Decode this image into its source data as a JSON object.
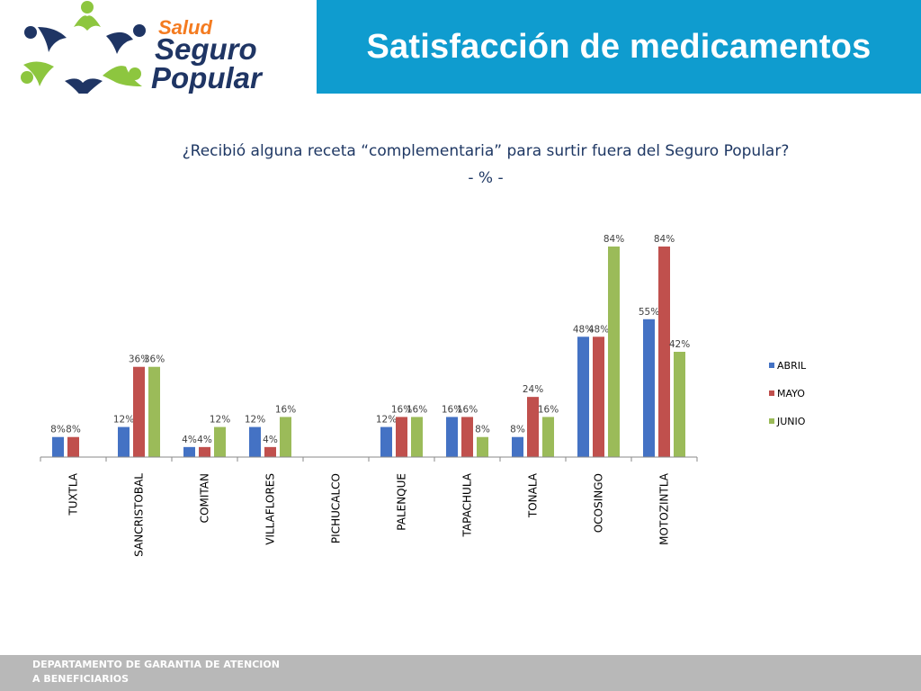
{
  "logo": {
    "line1": "Salud",
    "line2": "Seguro",
    "line3": "Popular"
  },
  "header": {
    "title": "Satisfacción de medicamentos"
  },
  "chart_title": {
    "question": "¿Recibió alguna receta “complementaria” para surtir fuera del Seguro Popular?",
    "unit": "- % -"
  },
  "footer": {
    "line1": "DEPARTAMENTO DE GARANTIA DE ATENCION",
    "line2": "A BENEFICIARIOS"
  },
  "chart_data": {
    "type": "bar",
    "title": "¿Recibió alguna receta “complementaria” para surtir fuera del Seguro Popular?",
    "subtitle": "- % -",
    "xlabel": "",
    "ylabel": "",
    "ylim": [
      0,
      84
    ],
    "grid": false,
    "legend_placement": "right",
    "categories": [
      "TUXTLA",
      "SANCRISTOBAL",
      "COMITAN",
      "VILLAFLORES",
      "PICHUCALCO",
      "PALENQUE",
      "TAPACHULA",
      "TONALA",
      "OCOSINGO",
      "MOTOZINTLA"
    ],
    "series": [
      {
        "name": "ABRIL",
        "color": "#4472c4",
        "values": [
          8,
          12,
          4,
          12,
          null,
          12,
          16,
          8,
          48,
          55
        ],
        "labels": [
          "8%",
          "12%",
          "4%",
          "12%",
          "",
          "12%",
          "16%",
          "8%",
          "48%",
          "55%"
        ]
      },
      {
        "name": "MAYO",
        "color": "#c0504d",
        "values": [
          8,
          36,
          4,
          4,
          null,
          16,
          16,
          24,
          48,
          84
        ],
        "labels": [
          "8%",
          "36%",
          "4%",
          "4%",
          "",
          "16%",
          "16%",
          "24%",
          "48%",
          "84%"
        ]
      },
      {
        "name": "JUNIO",
        "color": "#9bbb59",
        "values": [
          null,
          36,
          12,
          16,
          null,
          16,
          8,
          16,
          84,
          42
        ],
        "labels": [
          "",
          "36%",
          "12%",
          "16%",
          "",
          "16%",
          "8%",
          "16%",
          "84%",
          "42%"
        ]
      }
    ]
  }
}
